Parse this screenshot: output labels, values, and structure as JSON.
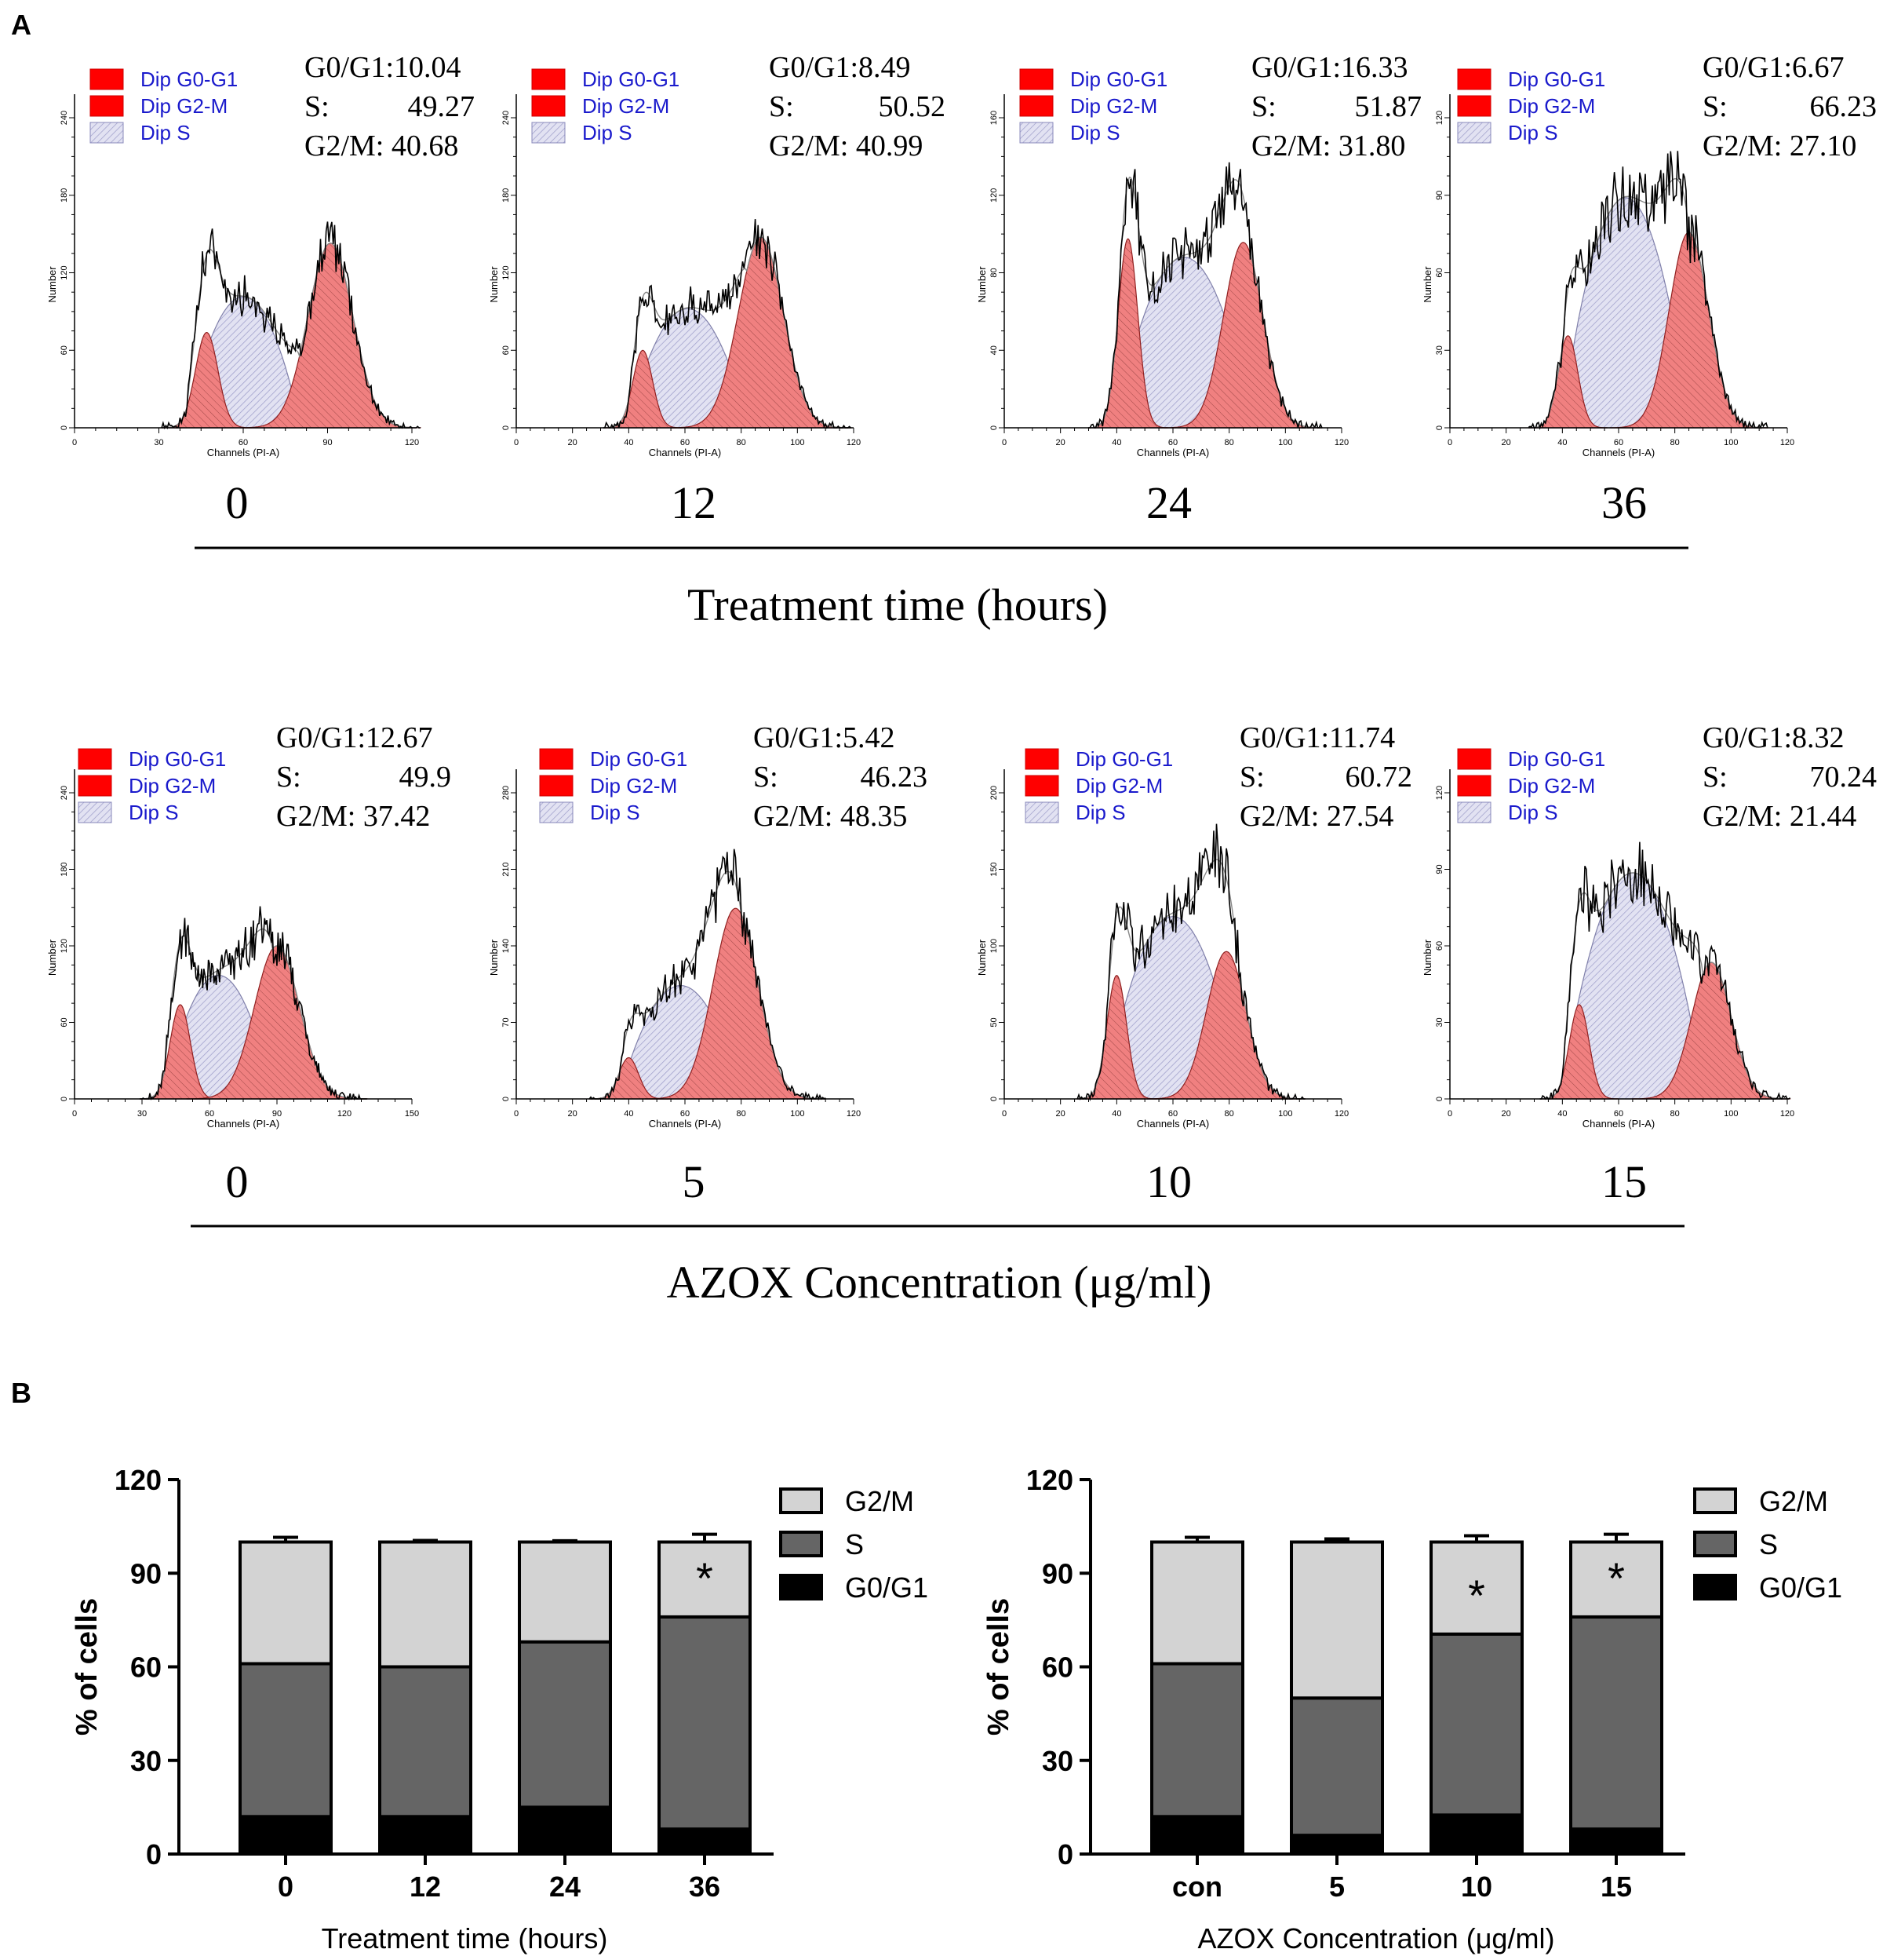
{
  "panel_labels": {
    "a": "A",
    "b": "B"
  },
  "histogram_axes": {
    "xlabel": "Channels (PI-A)",
    "ylabel": "Number"
  },
  "legend_entries": {
    "g0g1": "Dip G0-G1",
    "g2m": "Dip G2-M",
    "s": "Dip S"
  },
  "colors": {
    "red": "#ff0000",
    "peak": "#f08080",
    "s_fill": "#d6d6ee",
    "g2m_bar": "#d3d3d3",
    "s_bar": "#656565",
    "g0g1_bar": "#000000"
  },
  "row1": {
    "axis_title": "Treatment time (hours)",
    "panels": [
      {
        "cond": "0",
        "stats": {
          "g0g1": "G0/G1:10.04",
          "s_label": "S:",
          "s_value": "49.27",
          "g2m": "G2/M: 40.68"
        },
        "x_ticks": [
          "0",
          "30",
          "60",
          "90",
          "120"
        ],
        "y_ticks": [
          "0",
          "60",
          "120",
          "180",
          "240"
        ],
        "model": {
          "xmax": 120,
          "ymax": 280,
          "g1": [
            47,
            4,
            80
          ],
          "s": [
            40,
            80,
            110
          ],
          "g2": [
            91,
            8,
            155
          ]
        }
      },
      {
        "cond": "12",
        "stats": {
          "g0g1": "G0/G1:8.49",
          "s_label": "S:",
          "s_value": "50.52",
          "g2m": "G2/M: 40.99"
        },
        "x_ticks": [
          "0",
          "20",
          "40",
          "60",
          "80",
          "100",
          "120"
        ],
        "y_ticks": [
          "0",
          "60",
          "120",
          "180",
          "240"
        ],
        "model": {
          "xmax": 120,
          "ymax": 280,
          "g1": [
            45,
            3.5,
            65
          ],
          "s": [
            40,
            82,
            100
          ],
          "g2": [
            87,
            8,
            160
          ]
        }
      },
      {
        "cond": "24",
        "stats": {
          "g0g1": "G0/G1:16.33",
          "s_label": "S:",
          "s_value": "51.87",
          "g2m": "G2/M: 31.80"
        },
        "x_ticks": [
          "0",
          "20",
          "40",
          "60",
          "80",
          "100",
          "120"
        ],
        "y_ticks": [
          "0",
          "40",
          "80",
          "120",
          "160"
        ],
        "model": {
          "xmax": 120,
          "ymax": 180,
          "g1": [
            44,
            3.5,
            102
          ],
          "s": [
            40,
            88,
            92
          ],
          "g2": [
            85,
            7,
            100
          ]
        }
      },
      {
        "cond": "36",
        "stats": {
          "g0g1": "G0/G1:6.67",
          "s_label": "S:",
          "s_value": "66.23",
          "g2m": "G2/M: 27.10"
        },
        "x_ticks": [
          "0",
          "20",
          "40",
          "60",
          "80",
          "100",
          "120"
        ],
        "y_ticks": [
          "0",
          "30",
          "60",
          "90",
          "120"
        ],
        "model": {
          "xmax": 120,
          "ymax": 145,
          "g1": [
            42,
            3.5,
            40
          ],
          "s": [
            40,
            85,
            100
          ],
          "g2": [
            85,
            7,
            85
          ]
        }
      }
    ]
  },
  "row2": {
    "axis_title": "AZOX Concentration (μg/ml)",
    "panels": [
      {
        "cond": "0",
        "stats": {
          "g0g1": "G0/G1:12.67",
          "s_label": "S:",
          "s_value": "49.9",
          "g2m": "G2/M: 37.42"
        },
        "x_ticks": [
          "0",
          "30",
          "60",
          "90",
          "120",
          "150"
        ],
        "y_ticks": [
          "0",
          "60",
          "120",
          "180",
          "240"
        ],
        "model": {
          "xmax": 150,
          "ymax": 280,
          "g1": [
            47,
            4.5,
            80
          ],
          "s": [
            40,
            88,
            105
          ],
          "g2": [
            90,
            10,
            130
          ]
        }
      },
      {
        "cond": "5",
        "stats": {
          "g0g1": "G0/G1:5.42",
          "s_label": "S:",
          "s_value": "46.23",
          "g2m": "G2/M: 48.35"
        },
        "x_ticks": [
          "0",
          "20",
          "40",
          "60",
          "80",
          "100",
          "120"
        ],
        "y_ticks": [
          "0",
          "70",
          "140",
          "210",
          "280"
        ],
        "model": {
          "xmax": 120,
          "ymax": 320,
          "g1": [
            40,
            3.5,
            40
          ],
          "s": [
            37,
            80,
            110
          ],
          "g2": [
            78,
            8,
            185
          ]
        }
      },
      {
        "cond": "10",
        "stats": {
          "g0g1": "G0/G1:11.74",
          "s_label": "S:",
          "s_value": "60.72",
          "g2m": "G2/M: 27.54"
        },
        "x_ticks": [
          "0",
          "20",
          "40",
          "60",
          "80",
          "100",
          "120"
        ],
        "y_ticks": [
          "0",
          "50",
          "100",
          "150",
          "200"
        ],
        "model": {
          "xmax": 120,
          "ymax": 235,
          "g1": [
            40,
            3.5,
            88
          ],
          "s": [
            36,
            84,
            130
          ],
          "g2": [
            79,
            7,
            105
          ]
        }
      },
      {
        "cond": "15",
        "stats": {
          "g0g1": "G0/G1:8.32",
          "s_label": "S:",
          "s_value": "70.24",
          "g2m": "G2/M: 21.44"
        },
        "x_ticks": [
          "0",
          "20",
          "40",
          "60",
          "80",
          "100",
          "120"
        ],
        "y_ticks": [
          "0",
          "30",
          "60",
          "90",
          "120"
        ],
        "model": {
          "xmax": 120,
          "ymax": 140,
          "g1": [
            46,
            3.5,
            40
          ],
          "s": [
            40,
            90,
            96
          ],
          "g2": [
            93,
            7,
            58
          ]
        }
      }
    ]
  },
  "bars_time": {
    "chart_data": {
      "type": "bar",
      "stacked": true,
      "categories": [
        "0",
        "12",
        "24",
        "36"
      ],
      "series": [
        {
          "name": "G0/G1",
          "values": [
            12,
            12,
            15,
            8
          ],
          "errors": [
            1,
            2.5,
            1.5,
            0.8
          ]
        },
        {
          "name": "S",
          "values": [
            49,
            48,
            53,
            68
          ],
          "errors": [
            0.4,
            2.5,
            1.5,
            1.8
          ]
        },
        {
          "name": "G2/M",
          "values": [
            39,
            40,
            32,
            24
          ],
          "errors": [
            1.5,
            0.5,
            0.4,
            2.5
          ]
        }
      ],
      "significance": [
        "",
        "",
        "",
        "*"
      ],
      "xlabel": "Treatment time (hours)",
      "ylabel": "% of cells",
      "yticks": [
        "0",
        "30",
        "60",
        "90",
        "120"
      ],
      "ylim": [
        0,
        120
      ],
      "legend": [
        "G2/M",
        "S",
        "G0/G1"
      ],
      "legend_position": "top-right"
    }
  },
  "bars_conc": {
    "chart_data": {
      "type": "bar",
      "stacked": true,
      "categories": [
        "con",
        "5",
        "10",
        "15"
      ],
      "series": [
        {
          "name": "G0/G1",
          "values": [
            12,
            6,
            12.5,
            8
          ],
          "errors": [
            1,
            0.6,
            0.6,
            0.6
          ]
        },
        {
          "name": "S",
          "values": [
            49,
            44,
            58,
            68
          ],
          "errors": [
            0.4,
            1.5,
            2.5,
            1.8
          ]
        },
        {
          "name": "G2/M",
          "values": [
            39,
            50,
            29.5,
            24
          ],
          "errors": [
            1.5,
            1,
            2,
            2.5
          ]
        }
      ],
      "significance": [
        "",
        "",
        "*",
        "*"
      ],
      "xlabel": "AZOX Concentration (μg/ml)",
      "ylabel": "% of cells",
      "yticks": [
        "0",
        "30",
        "60",
        "90",
        "120"
      ],
      "ylim": [
        0,
        120
      ],
      "legend": [
        "G2/M",
        "S",
        "G0/G1"
      ],
      "legend_position": "top-right"
    }
  }
}
